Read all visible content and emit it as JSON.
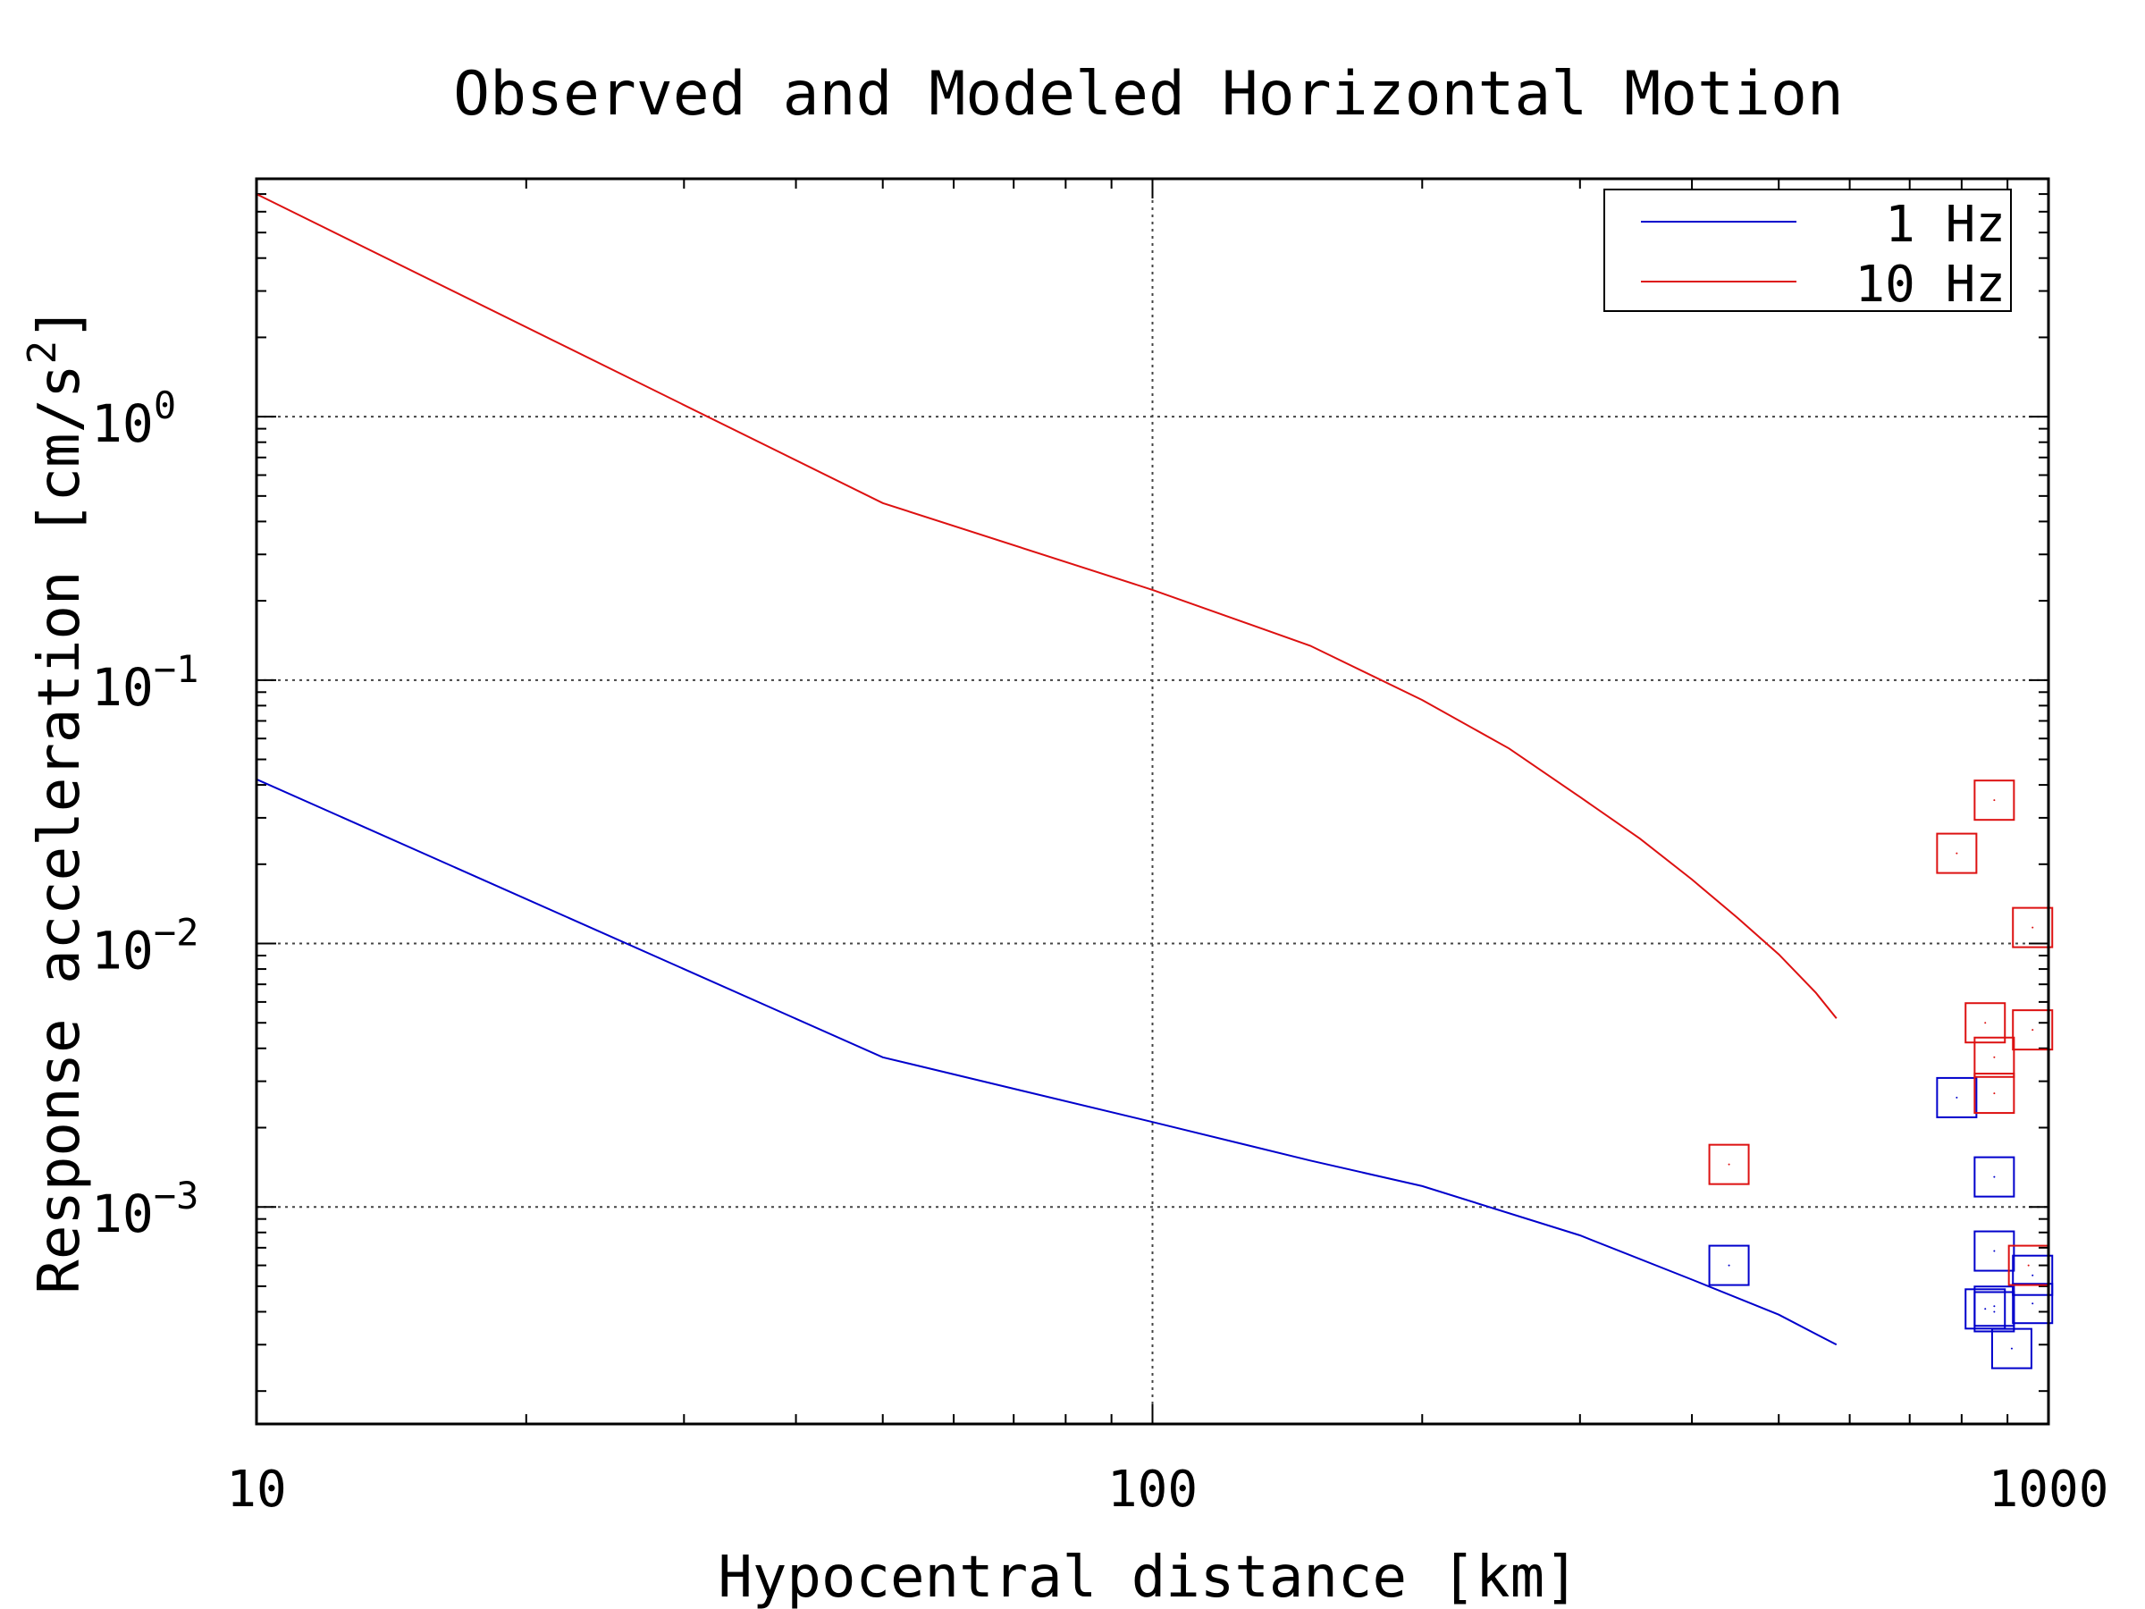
{
  "chart_data": {
    "type": "line",
    "title": "Observed and Modeled Horizontal Motion",
    "xlabel": "Hypocentral distance [km]",
    "ylabel": "Response acceleration [cm/s",
    "ylabel_sup": "2",
    "ylabel_end": "]",
    "x_scale": "log",
    "y_scale": "log",
    "xlim": [
      10,
      1000
    ],
    "ylim": [
      0.00015,
      8
    ],
    "grid": true,
    "legend_position": "top-right",
    "x_ticks": [
      {
        "value": 10,
        "label": "10"
      },
      {
        "value": 100,
        "label": "100"
      },
      {
        "value": 1000,
        "label": "1000"
      }
    ],
    "y_ticks": [
      {
        "value": 1,
        "base": "10",
        "exp": "0"
      },
      {
        "value": 0.1,
        "base": "10",
        "exp": "−1"
      },
      {
        "value": 0.01,
        "base": "10",
        "exp": "−2"
      },
      {
        "value": 0.001,
        "base": "10",
        "exp": "−3"
      }
    ],
    "series": [
      {
        "name": "1 Hz",
        "color": "#0000cc",
        "type": "line",
        "x": [
          10,
          50,
          100,
          150,
          200,
          300,
          400,
          500,
          580
        ],
        "y": [
          0.042,
          0.0037,
          0.0021,
          0.0015,
          0.0012,
          0.00078,
          0.00053,
          0.00039,
          0.0003
        ]
      },
      {
        "name": "10 Hz",
        "color": "#dd1111",
        "type": "line",
        "x": [
          10,
          50,
          100,
          150,
          200,
          250,
          300,
          350,
          400,
          450,
          500,
          550,
          580
        ],
        "y": [
          7.0,
          0.47,
          0.22,
          0.135,
          0.084,
          0.055,
          0.036,
          0.025,
          0.0175,
          0.0125,
          0.0091,
          0.0065,
          0.0052
        ]
      }
    ],
    "observed": [
      {
        "series": "1 Hz",
        "color": "#0000cc",
        "marker": "square",
        "x": [
          440,
          790,
          870,
          870,
          870,
          850,
          870,
          910,
          960,
          960
        ],
        "y": [
          0.0006,
          0.0026,
          0.0013,
          0.00068,
          0.00042,
          0.00041,
          0.0004,
          0.00029,
          0.00055,
          0.00043
        ]
      },
      {
        "series": "10 Hz",
        "color": "#dd1111",
        "marker": "square",
        "x": [
          440,
          790,
          870,
          850,
          870,
          870,
          960,
          960,
          950
        ],
        "y": [
          0.00145,
          0.022,
          0.035,
          0.005,
          0.0037,
          0.0027,
          0.0115,
          0.0047,
          0.0006
        ]
      }
    ]
  }
}
